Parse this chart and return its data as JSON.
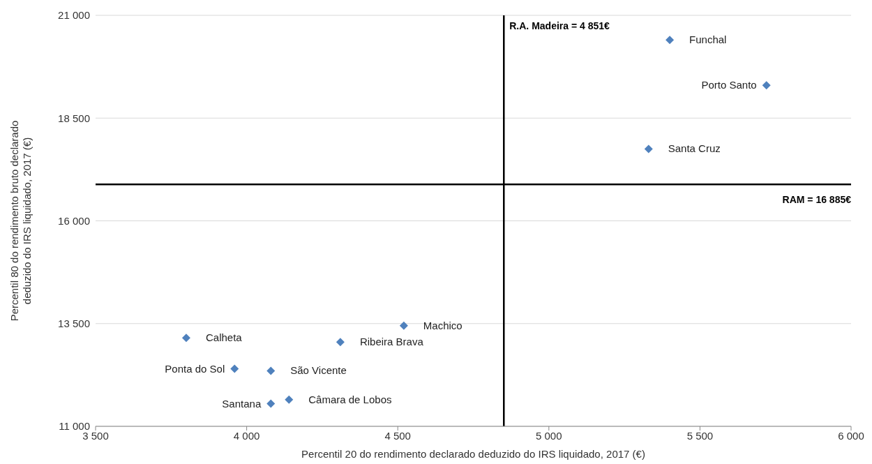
{
  "chart_data": {
    "type": "scatter",
    "xlabel": "Percentil 20 do rendimento declarado deduzido do IRS liquidado, 2017 (€)",
    "ylabel": "Percentil 80 do rendimento bruto declarado deduzido do IRS liquidado, 2017 (€)",
    "x": [
      5400,
      5720,
      5330,
      4520,
      4310,
      3800,
      3960,
      4080,
      4140,
      4080
    ],
    "series": [
      {
        "color": "#4f81bd",
        "values": [
          20400,
          19300,
          17750,
          13450,
          13050,
          13150,
          12400,
          12350,
          11650,
          11550
        ]
      }
    ],
    "xlim": [
      3500,
      6000
    ],
    "xticks": [
      {
        "value": 3500,
        "label": "3 500"
      },
      {
        "value": 4000,
        "label": "4 000"
      },
      {
        "value": 4500,
        "label": "4 500"
      },
      {
        "value": 5000,
        "label": "5 000"
      },
      {
        "value": 5500,
        "label": "5 500"
      },
      {
        "value": 6000,
        "label": "6 000"
      }
    ],
    "ylim": [
      11000,
      21000
    ],
    "yticks": [
      {
        "value": 11000,
        "label": "11 000"
      },
      {
        "value": 13500,
        "label": "13 500"
      },
      {
        "value": 16000,
        "label": "16 000"
      },
      {
        "value": 18500,
        "label": "18 500"
      },
      {
        "value": 21000,
        "label": "21 000"
      }
    ],
    "grid": "y",
    "legend": false,
    "marker": "diamond",
    "ref_lines": [
      {
        "axis": "x",
        "value": 4851,
        "label": "R.A. Madeira = 4 851€",
        "color": "#000000"
      },
      {
        "axis": "y",
        "value": 16885,
        "label": "RAM = 16 885€",
        "color": "#000000"
      }
    ],
    "annotations": [
      {
        "text": "Funchal",
        "x": 5400,
        "y": 20400
      },
      {
        "text": "Porto Santo",
        "x": 5720,
        "y": 19300
      },
      {
        "text": "Santa Cruz",
        "x": 5330,
        "y": 17750
      },
      {
        "text": "Machico",
        "x": 4520,
        "y": 13450
      },
      {
        "text": "Ribeira Brava",
        "x": 4310,
        "y": 13050
      },
      {
        "text": "Calheta",
        "x": 3800,
        "y": 13150
      },
      {
        "text": "Ponta do Sol",
        "x": 3960,
        "y": 12400
      },
      {
        "text": "São Vicente",
        "x": 4080,
        "y": 12350
      },
      {
        "text": "Câmara de Lobos",
        "x": 4140,
        "y": 11650
      },
      {
        "text": "Santana",
        "x": 4080,
        "y": 11550
      }
    ]
  }
}
